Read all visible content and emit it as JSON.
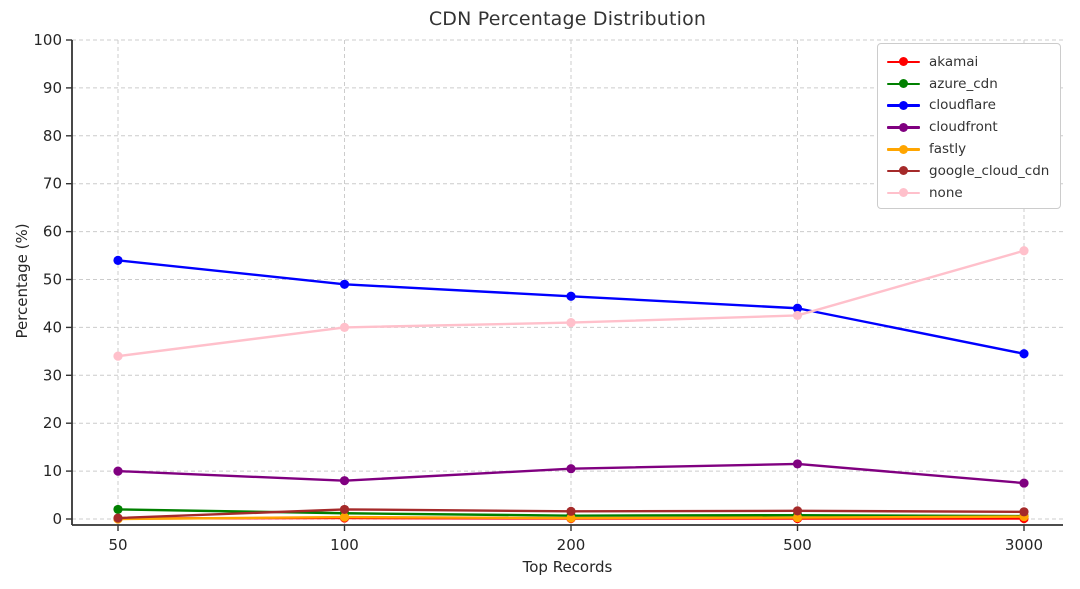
{
  "title": "CDN Percentage Distribution",
  "chart_data": {
    "type": "line",
    "title": "CDN Percentage Distribution",
    "xlabel": "Top Records",
    "ylabel": "Percentage (%)",
    "categories": [
      "50",
      "100",
      "200",
      "500",
      "3000"
    ],
    "yticks": [
      0,
      10,
      20,
      30,
      40,
      50,
      60,
      70,
      80,
      90,
      100
    ],
    "ylim": [
      -2,
      100
    ],
    "grid": true,
    "grid_style": "dashed",
    "legend_position": "upper right",
    "series": [
      {
        "name": "akamai",
        "color": "#FF0000",
        "values": [
          0.1,
          0.2,
          0.1,
          0.1,
          0.1
        ]
      },
      {
        "name": "azure_cdn",
        "color": "#008000",
        "values": [
          2.0,
          1.2,
          0.7,
          0.8,
          0.6
        ]
      },
      {
        "name": "cloudflare",
        "color": "#0000FF",
        "values": [
          54.0,
          49.0,
          46.5,
          44.0,
          34.5
        ]
      },
      {
        "name": "cloudfront",
        "color": "#800080",
        "values": [
          10.0,
          8.0,
          10.5,
          11.5,
          7.5
        ]
      },
      {
        "name": "fastly",
        "color": "#FFA500",
        "values": [
          0.0,
          0.4,
          0.2,
          0.3,
          0.5
        ]
      },
      {
        "name": "google_cloud_cdn",
        "color": "#A52A2A",
        "values": [
          0.2,
          2.0,
          1.6,
          1.7,
          1.5
        ]
      },
      {
        "name": "none",
        "color": "#FFC0CB",
        "values": [
          34.0,
          40.0,
          41.0,
          42.5,
          56.0
        ]
      }
    ],
    "colors": {
      "grid": "#cccccc",
      "spine": "#333333",
      "tick_text": "#262626",
      "title_text": "#333333"
    }
  }
}
